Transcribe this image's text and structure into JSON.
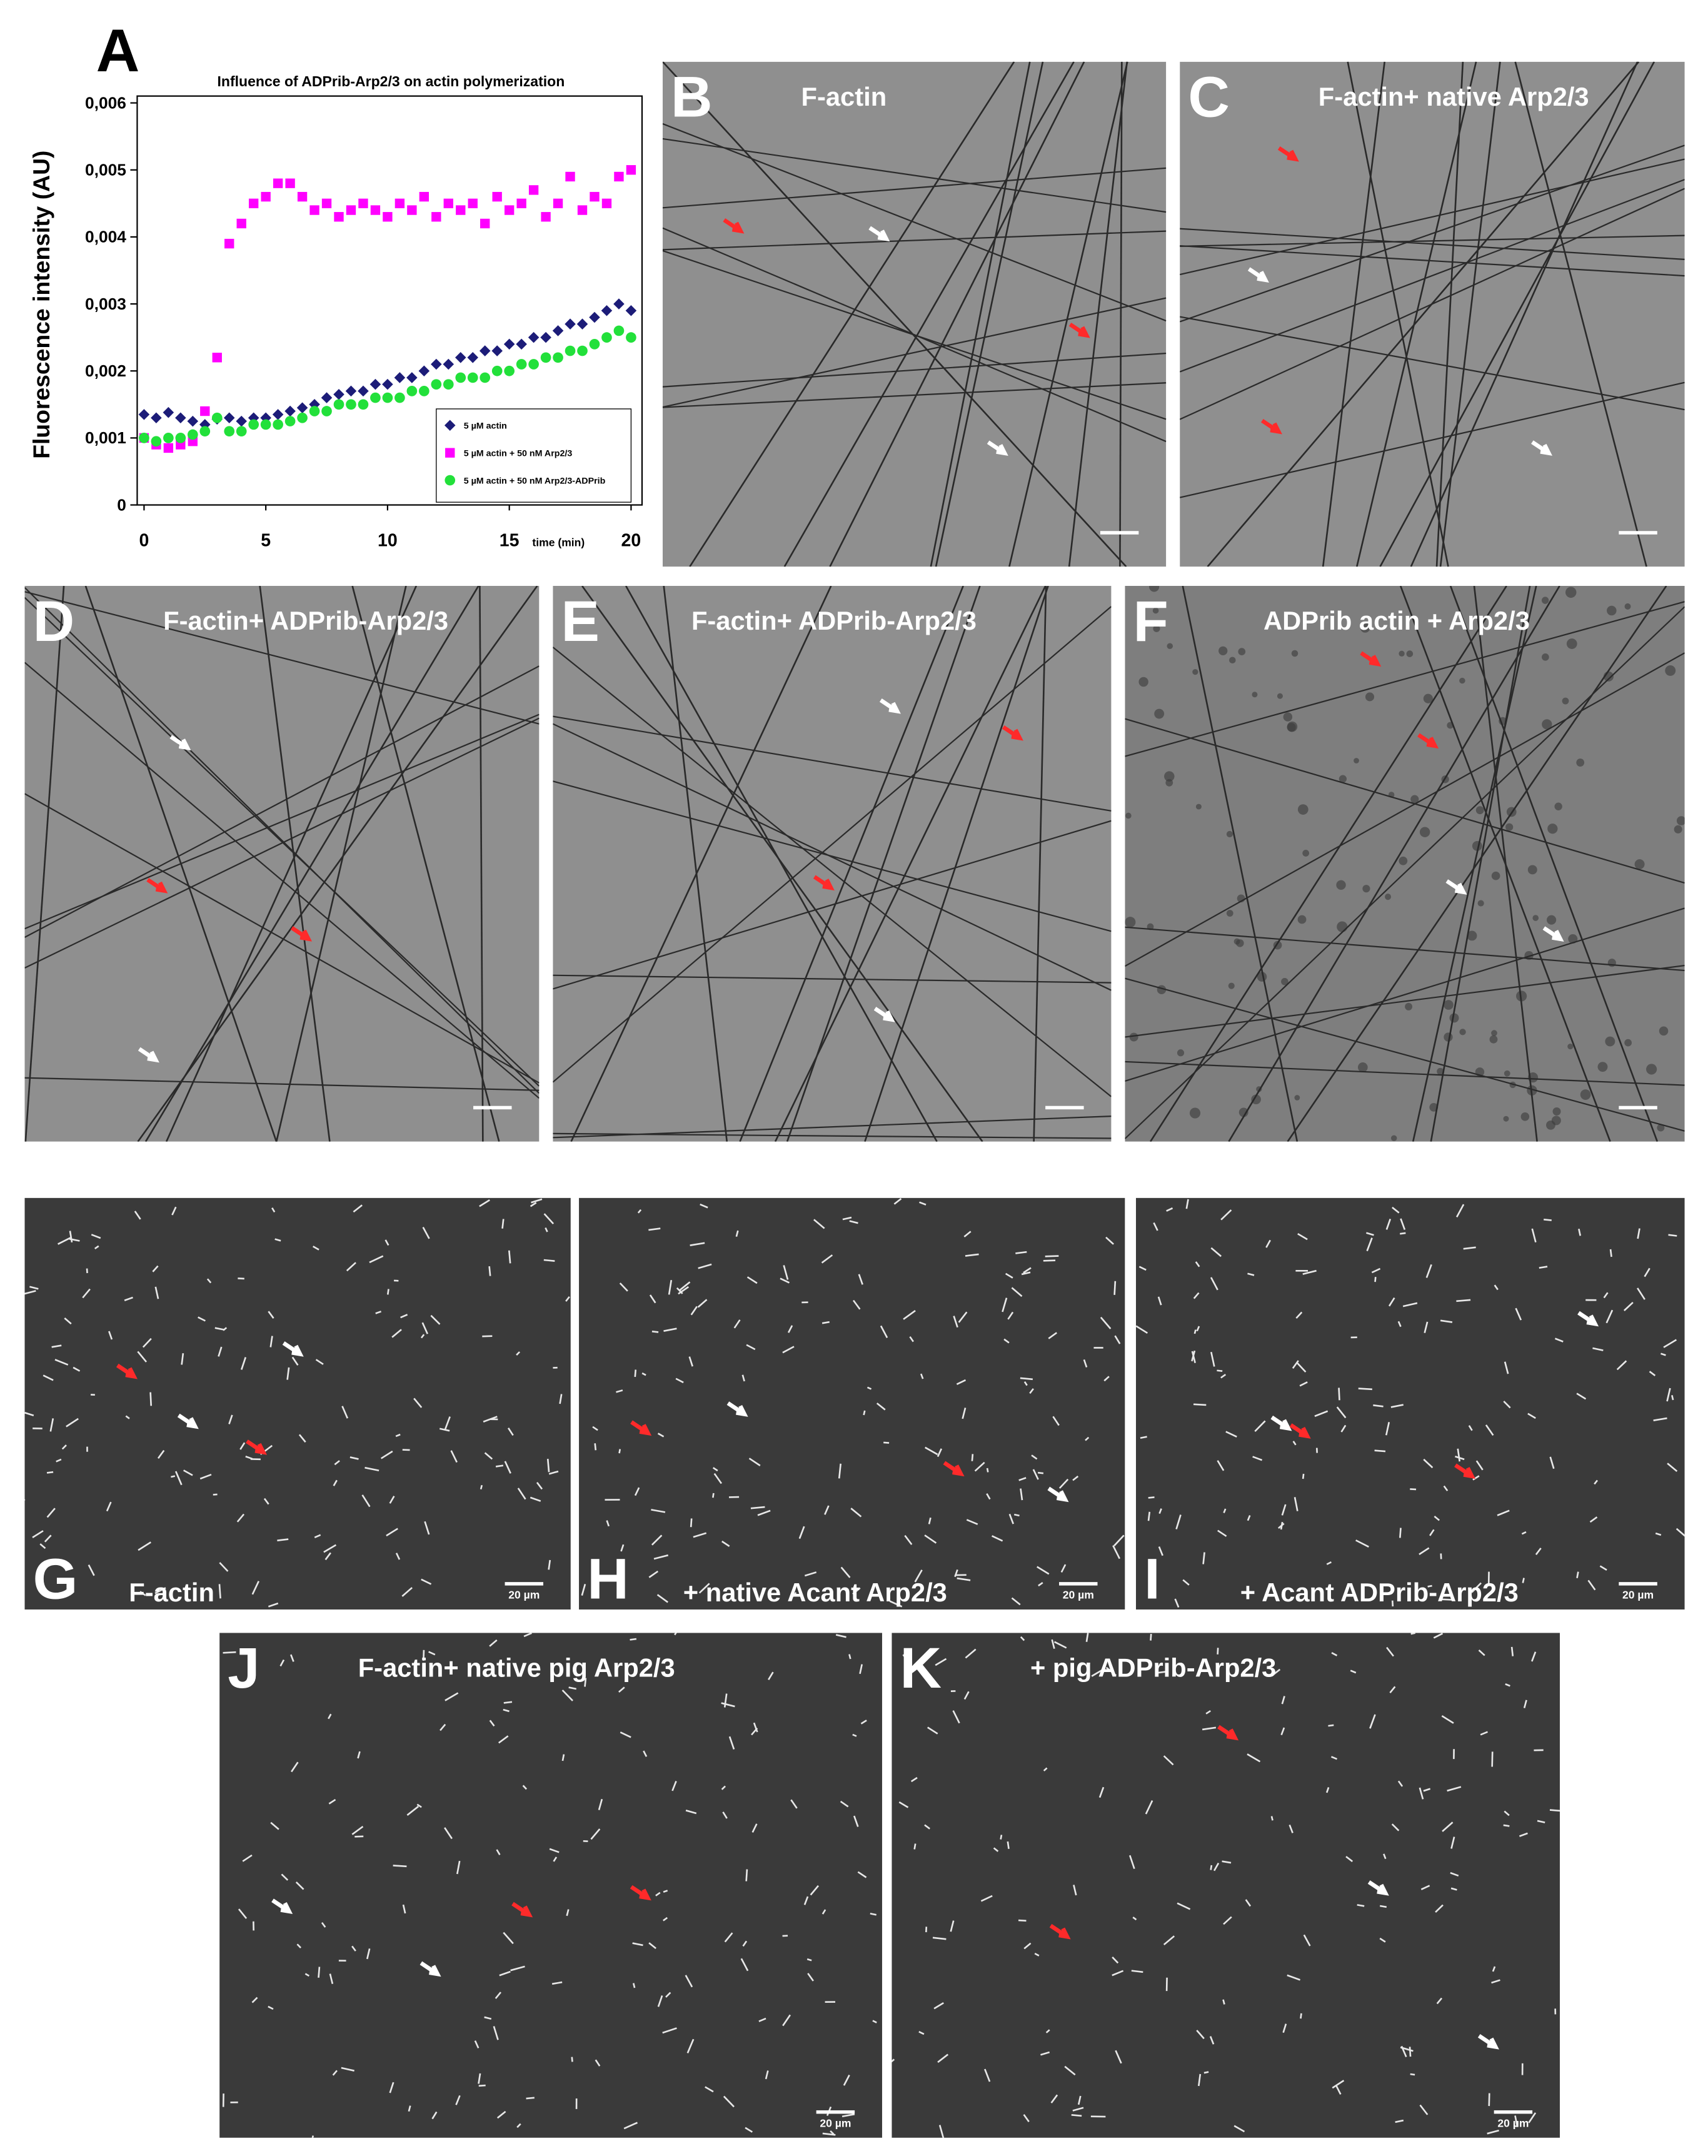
{
  "chart_data": {
    "type": "scatter",
    "panel_letter": "A",
    "title": "Influence of ADPrib-Arp2/3 on actin polymerization",
    "ylabel": "Fluorescence intensity (AU)",
    "xlabel": "time (min)",
    "x": [
      0,
      0.5,
      1,
      1.5,
      2,
      2.5,
      3,
      3.5,
      4,
      4.5,
      5,
      5.5,
      6,
      6.5,
      7,
      7.5,
      8,
      8.5,
      9,
      9.5,
      10,
      10.5,
      11,
      11.5,
      12,
      12.5,
      13,
      13.5,
      14,
      14.5,
      15,
      15.5,
      16,
      16.5,
      17,
      17.5,
      18,
      18.5,
      19,
      19.5,
      20
    ],
    "series": [
      {
        "name": "5 µM actin",
        "color": "#1c1c78",
        "marker": "diamond",
        "values": [
          0.00135,
          0.0013,
          0.00138,
          0.0013,
          0.00125,
          0.0012,
          0.00128,
          0.0013,
          0.00125,
          0.0013,
          0.0013,
          0.00135,
          0.0014,
          0.00145,
          0.0015,
          0.0016,
          0.00165,
          0.0017,
          0.0017,
          0.0018,
          0.0018,
          0.0019,
          0.0019,
          0.002,
          0.0021,
          0.0021,
          0.0022,
          0.0022,
          0.0023,
          0.0023,
          0.0024,
          0.0024,
          0.0025,
          0.0025,
          0.0026,
          0.0027,
          0.0027,
          0.0028,
          0.0029,
          0.003,
          0.0029
        ]
      },
      {
        "name": "5 µM actin + 50 nM Arp2/3",
        "color": "#ff00ff",
        "marker": "square",
        "values": [
          0.001,
          0.0009,
          0.00085,
          0.0009,
          0.00095,
          0.0014,
          0.0022,
          0.0039,
          0.0042,
          0.0045,
          0.0046,
          0.0048,
          0.0048,
          0.0046,
          0.0044,
          0.0045,
          0.0043,
          0.0044,
          0.0045,
          0.0044,
          0.0043,
          0.0045,
          0.0044,
          0.0046,
          0.0043,
          0.0045,
          0.0044,
          0.0045,
          0.0042,
          0.0046,
          0.0044,
          0.0045,
          0.0047,
          0.0043,
          0.0045,
          0.0049,
          0.0044,
          0.0046,
          0.0045,
          0.0049,
          0.005
        ]
      },
      {
        "name": "5 µM actin + 50 nM Arp2/3-ADPrib",
        "color": "#22e03a",
        "marker": "circle",
        "values": [
          0.001,
          0.00095,
          0.001,
          0.001,
          0.00105,
          0.0011,
          0.0013,
          0.0011,
          0.0011,
          0.0012,
          0.0012,
          0.0012,
          0.00125,
          0.0013,
          0.0014,
          0.0014,
          0.0015,
          0.0015,
          0.0015,
          0.0016,
          0.0016,
          0.0016,
          0.0017,
          0.0017,
          0.0018,
          0.0018,
          0.0019,
          0.0019,
          0.0019,
          0.002,
          0.002,
          0.0021,
          0.0021,
          0.0022,
          0.0022,
          0.0023,
          0.0023,
          0.0024,
          0.0025,
          0.0026,
          0.0025
        ]
      }
    ],
    "xlim": [
      0,
      20
    ],
    "xticks": [
      0,
      5,
      10,
      15,
      20
    ],
    "ylim": [
      0,
      0.006
    ],
    "yticks": [
      0,
      {
        "value": 0.001,
        "label": "0,001"
      },
      {
        "value": 0.002,
        "label": "0,002"
      },
      {
        "value": 0.003,
        "label": "0,003"
      },
      {
        "value": 0.004,
        "label": "0,004"
      },
      {
        "value": 0.005,
        "label": "0,005"
      },
      {
        "value": 0.006,
        "label": "0,006"
      }
    ],
    "legend": "lower right"
  },
  "panels": [
    {
      "letter": "B",
      "caption": "F-actin"
    },
    {
      "letter": "C",
      "caption": "F-actin+ native Arp2/3"
    },
    {
      "letter": "D",
      "caption": "F-actin+ ADPrib-Arp2/3"
    },
    {
      "letter": "E",
      "caption": "F-actin+ ADPrib-Arp2/3"
    },
    {
      "letter": "F",
      "caption": "ADPrib actin + Arp2/3"
    },
    {
      "letter": "G",
      "caption": "F-actin",
      "scale_bar": "20 µm"
    },
    {
      "letter": "H",
      "caption": "+ native Acant Arp2/3",
      "scale_bar": "20 µm"
    },
    {
      "letter": "I",
      "caption": "+ Acant ADPrib-Arp2/3",
      "scale_bar": "20 µm"
    },
    {
      "letter": "J",
      "caption": "F-actin+ native pig Arp2/3",
      "scale_bar": "20 µm"
    },
    {
      "letter": "K",
      "caption": "+ pig ADPrib-Arp2/3",
      "scale_bar": "20 µm"
    }
  ]
}
